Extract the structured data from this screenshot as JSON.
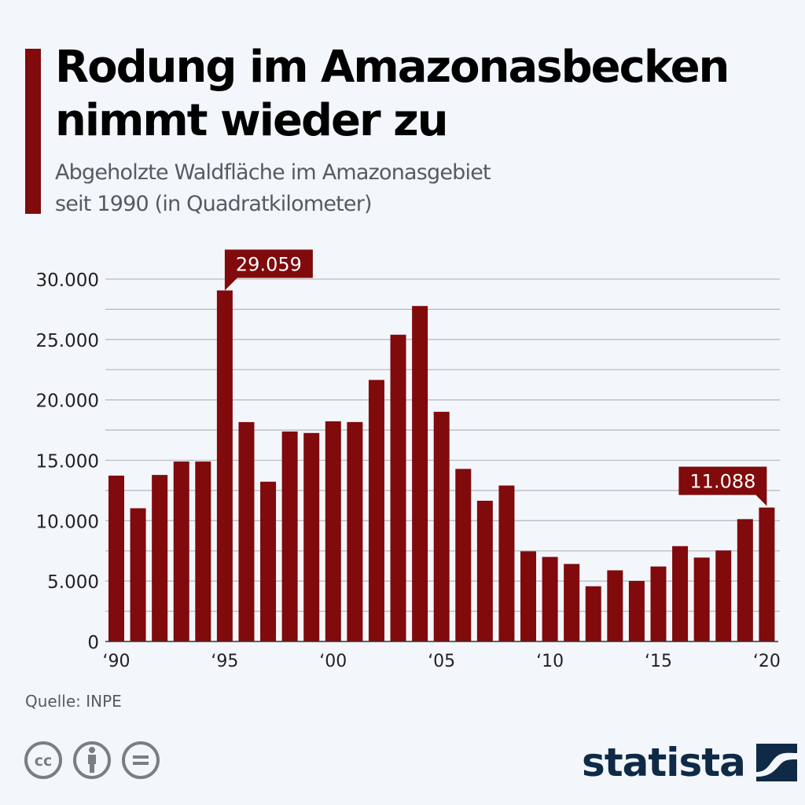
{
  "header": {
    "title_line1": "Rodung im Amazonasbecken",
    "title_line2": "nimmt wieder zu",
    "subtitle_line1": "Abgeholzte Waldfläche im Amazonasgebiet",
    "subtitle_line2": "seit 1990 (in Quadratkilometer)"
  },
  "colors": {
    "bar": "#800a0c",
    "accent": "#800a0c",
    "gridline": "#b8bcc2",
    "axis": "#333333",
    "callout_text": "#ffffff",
    "logo": "#0f2a47",
    "background": "#f3f7fb"
  },
  "footer": {
    "source": "Quelle: INPE",
    "license_icons": [
      "cc-icon",
      "attribution-icon",
      "no-derivatives-icon"
    ],
    "logo_text": "statista",
    "logo_icon": "statista-wave-icon"
  },
  "chart_data": {
    "type": "bar",
    "title": "Rodung im Amazonasbecken nimmt wieder zu",
    "subtitle": "Abgeholzte Waldfläche im Amazonasgebiet seit 1990 (in Quadratkilometer)",
    "xlabel": "",
    "ylabel": "",
    "categories": [
      "1990",
      "1991",
      "1992",
      "1993",
      "1994",
      "1995",
      "1996",
      "1997",
      "1998",
      "1999",
      "2000",
      "2001",
      "2002",
      "2003",
      "2004",
      "2005",
      "2006",
      "2007",
      "2008",
      "2009",
      "2010",
      "2011",
      "2012",
      "2013",
      "2014",
      "2015",
      "2016",
      "2017",
      "2018",
      "2019",
      "2020"
    ],
    "values": [
      13730,
      11030,
      13786,
      14896,
      14896,
      29059,
      18161,
      13227,
      17383,
      17259,
      18226,
      18165,
      21651,
      25396,
      27772,
      19014,
      14286,
      11651,
      12911,
      7464,
      7000,
      6418,
      4571,
      5891,
      5012,
      6207,
      7893,
      6947,
      7536,
      10129,
      11088
    ],
    "ylim": [
      0,
      30000
    ],
    "yticks": [
      0,
      5000,
      10000,
      15000,
      20000,
      25000,
      30000
    ],
    "ytick_labels": [
      "0",
      "5.000",
      "10.000",
      "15.000",
      "20.000",
      "25.000",
      "30.000"
    ],
    "minor_gridlines": [
      2500,
      7500,
      12500,
      17500,
      22500,
      27500
    ],
    "xtick_labels": [
      {
        "index": 0,
        "label": "‘90"
      },
      {
        "index": 5,
        "label": "‘95"
      },
      {
        "index": 10,
        "label": "‘00"
      },
      {
        "index": 15,
        "label": "‘05"
      },
      {
        "index": 20,
        "label": "‘10"
      },
      {
        "index": 25,
        "label": "‘15"
      },
      {
        "index": 30,
        "label": "‘20"
      }
    ],
    "annotations": [
      {
        "index": 5,
        "label": "29.059",
        "pointer": "left"
      },
      {
        "index": 30,
        "label": "11.088",
        "pointer": "right"
      }
    ],
    "grid": true,
    "legend": "none"
  }
}
